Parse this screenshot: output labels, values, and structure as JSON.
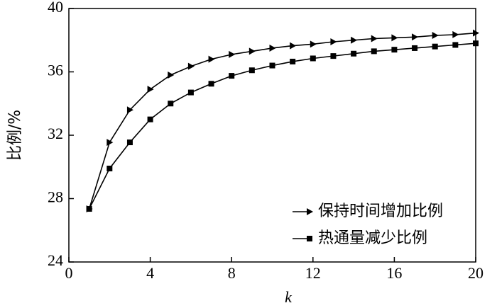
{
  "chart_data": {
    "type": "line",
    "x_label": "k",
    "y_label": "比例/%",
    "x": [
      1,
      2,
      3,
      4,
      5,
      6,
      7,
      8,
      9,
      10,
      11,
      12,
      13,
      14,
      15,
      16,
      17,
      18,
      19,
      20
    ],
    "series": [
      {
        "name": "保持时间增加比例",
        "color": "#000000",
        "marker": "triangle",
        "values": [
          27.35,
          31.55,
          33.6,
          34.9,
          35.8,
          36.35,
          36.8,
          37.1,
          37.3,
          37.5,
          37.65,
          37.75,
          37.9,
          38.0,
          38.1,
          38.15,
          38.2,
          38.3,
          38.35,
          38.45
        ]
      },
      {
        "name": "热通量减少比例",
        "color": "#000000",
        "marker": "square",
        "values": [
          27.35,
          29.9,
          31.55,
          33.0,
          34.0,
          34.7,
          35.25,
          35.75,
          36.1,
          36.4,
          36.65,
          36.85,
          37.0,
          37.15,
          37.3,
          37.4,
          37.5,
          37.6,
          37.7,
          37.8
        ]
      }
    ],
    "xlim": [
      0,
      20
    ],
    "xticks": [
      0,
      4,
      8,
      12,
      16,
      20
    ],
    "ylim": [
      24,
      40
    ],
    "yticks": [
      24,
      28,
      32,
      36,
      40
    ],
    "legend": "lower right"
  }
}
